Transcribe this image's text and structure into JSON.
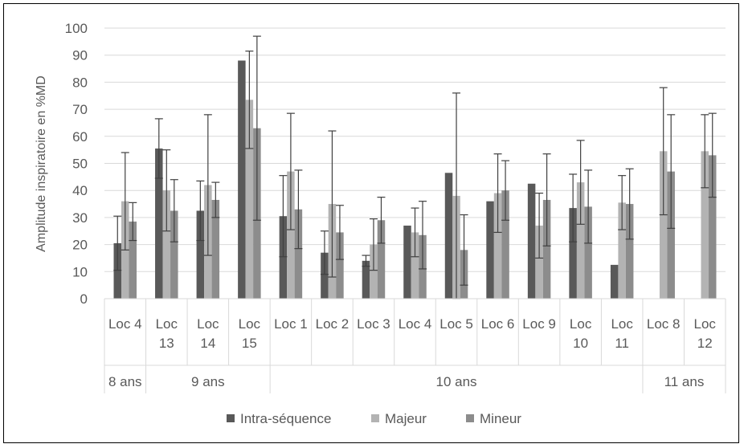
{
  "chart_data": {
    "type": "bar",
    "ylabel": "Amplitude inspiratoire en %MD",
    "ylim": [
      0,
      100
    ],
    "yticks": [
      "0",
      "10",
      "20",
      "30",
      "40",
      "50",
      "60",
      "70",
      "80",
      "90",
      "100"
    ],
    "grid": true,
    "legend_position": "bottom",
    "categories": [
      [
        "Loc 4"
      ],
      [
        "Loc",
        "13"
      ],
      [
        "Loc",
        "14"
      ],
      [
        "Loc",
        "15"
      ],
      [
        "Loc 1"
      ],
      [
        "Loc 2"
      ],
      [
        "Loc 3"
      ],
      [
        "Loc 4"
      ],
      [
        "Loc 5"
      ],
      [
        "Loc 6"
      ],
      [
        "Loc 9"
      ],
      [
        "Loc",
        "10"
      ],
      [
        "Loc",
        "11"
      ],
      [
        "Loc 8"
      ],
      [
        "Loc",
        "12"
      ]
    ],
    "groups": [
      {
        "label": "8 ans",
        "count": 1
      },
      {
        "label": "9 ans",
        "count": 3
      },
      {
        "label": "10 ans",
        "count": 9
      },
      {
        "label": "11 ans",
        "count": 2
      }
    ],
    "series": [
      {
        "name": "Intra-séquence",
        "color": "#595959",
        "values": [
          20.5,
          55.5,
          32.5,
          88,
          30.5,
          17,
          14,
          27,
          46.5,
          36,
          42.5,
          33.5,
          12.5,
          null,
          null
        ],
        "error": [
          10,
          11,
          11,
          null,
          15,
          8,
          2,
          null,
          null,
          null,
          null,
          12.5,
          null,
          null,
          null
        ]
      },
      {
        "name": "Majeur",
        "color": "#b3b3b3",
        "values": [
          36,
          40,
          42,
          73.5,
          47,
          35,
          20,
          24.5,
          38,
          39,
          27,
          43,
          35.5,
          54.5,
          54.5
        ],
        "error": [
          18,
          15,
          26,
          18,
          21.5,
          27,
          9.5,
          9,
          38,
          14.5,
          12,
          15.5,
          10,
          23.5,
          13.5
        ]
      },
      {
        "name": "Mineur",
        "color": "#8c8c8c",
        "values": [
          28.5,
          32.5,
          36.5,
          63,
          33,
          24.5,
          29,
          23.5,
          18,
          40,
          36.5,
          34,
          35,
          47,
          53
        ],
        "error": [
          7,
          11.5,
          6.5,
          34,
          14.5,
          10,
          8.5,
          12.5,
          13,
          11,
          17,
          13.5,
          13,
          21,
          15.5
        ]
      }
    ]
  }
}
